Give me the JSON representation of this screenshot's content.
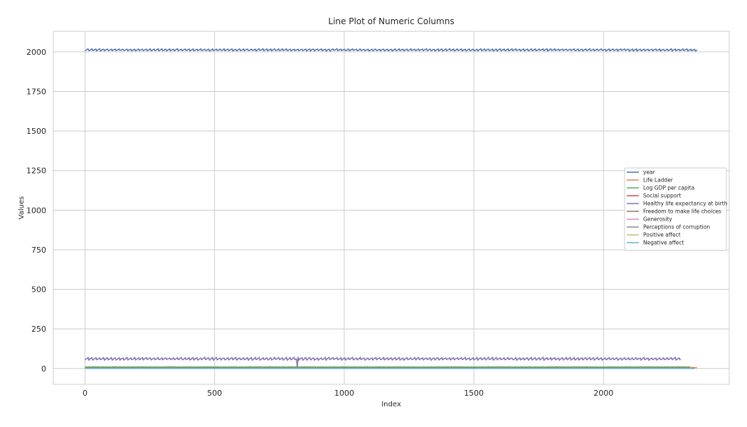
{
  "chart_data": {
    "type": "line",
    "title": "Line Plot of Numeric Columns",
    "xlabel": "Index",
    "ylabel": "Values",
    "xlim": [
      -122,
      2485
    ],
    "ylim": [
      -100,
      2130
    ],
    "x_ticks": [
      0,
      500,
      1000,
      1500,
      2000
    ],
    "y_ticks": [
      0,
      250,
      500,
      750,
      1000,
      1250,
      1500,
      1750,
      2000
    ],
    "grid": true,
    "legend_position": "right",
    "series": [
      {
        "name": "year",
        "color": "#4c72b0",
        "n": 2363,
        "level": 2014,
        "amplitude": 7,
        "period": 15,
        "kind": "saw"
      },
      {
        "name": "Life Ladder",
        "color": "#dd8452",
        "n": 2363,
        "level": 5.5,
        "amplitude": 1.2,
        "period": 40,
        "kind": "noise"
      },
      {
        "name": "Log GDP per capita",
        "color": "#55a868",
        "n": 2335,
        "level": 9.4,
        "amplitude": 1.2,
        "period": 40,
        "kind": "noise"
      },
      {
        "name": "Social support",
        "color": "#c44e52",
        "n": 2350,
        "level": 0.81,
        "amplitude": 0.12,
        "period": 40,
        "kind": "noise"
      },
      {
        "name": "Healthy life expectancy at birth",
        "color": "#8172b3",
        "n": 2300,
        "level": 63,
        "amplitude": 9,
        "period": 15,
        "kind": "saw",
        "dip_index": 820,
        "dip_value": 6.7
      },
      {
        "name": "Freedom to make life choices",
        "color": "#937860",
        "n": 2327,
        "level": 0.75,
        "amplitude": 0.14,
        "period": 40,
        "kind": "noise"
      },
      {
        "name": "Generosity",
        "color": "#da8bc3",
        "n": 2282,
        "level": 0.0,
        "amplitude": 0.16,
        "period": 40,
        "kind": "noise"
      },
      {
        "name": "Perceptions of corruption",
        "color": "#8c8c8c",
        "n": 2238,
        "level": 0.74,
        "amplitude": 0.18,
        "period": 40,
        "kind": "noise"
      },
      {
        "name": "Positive affect",
        "color": "#ccb974",
        "n": 2339,
        "level": 0.65,
        "amplitude": 0.1,
        "period": 40,
        "kind": "noise"
      },
      {
        "name": "Negative affect",
        "color": "#64b5cd",
        "n": 2347,
        "level": 0.27,
        "amplitude": 0.08,
        "period": 40,
        "kind": "noise"
      }
    ]
  }
}
